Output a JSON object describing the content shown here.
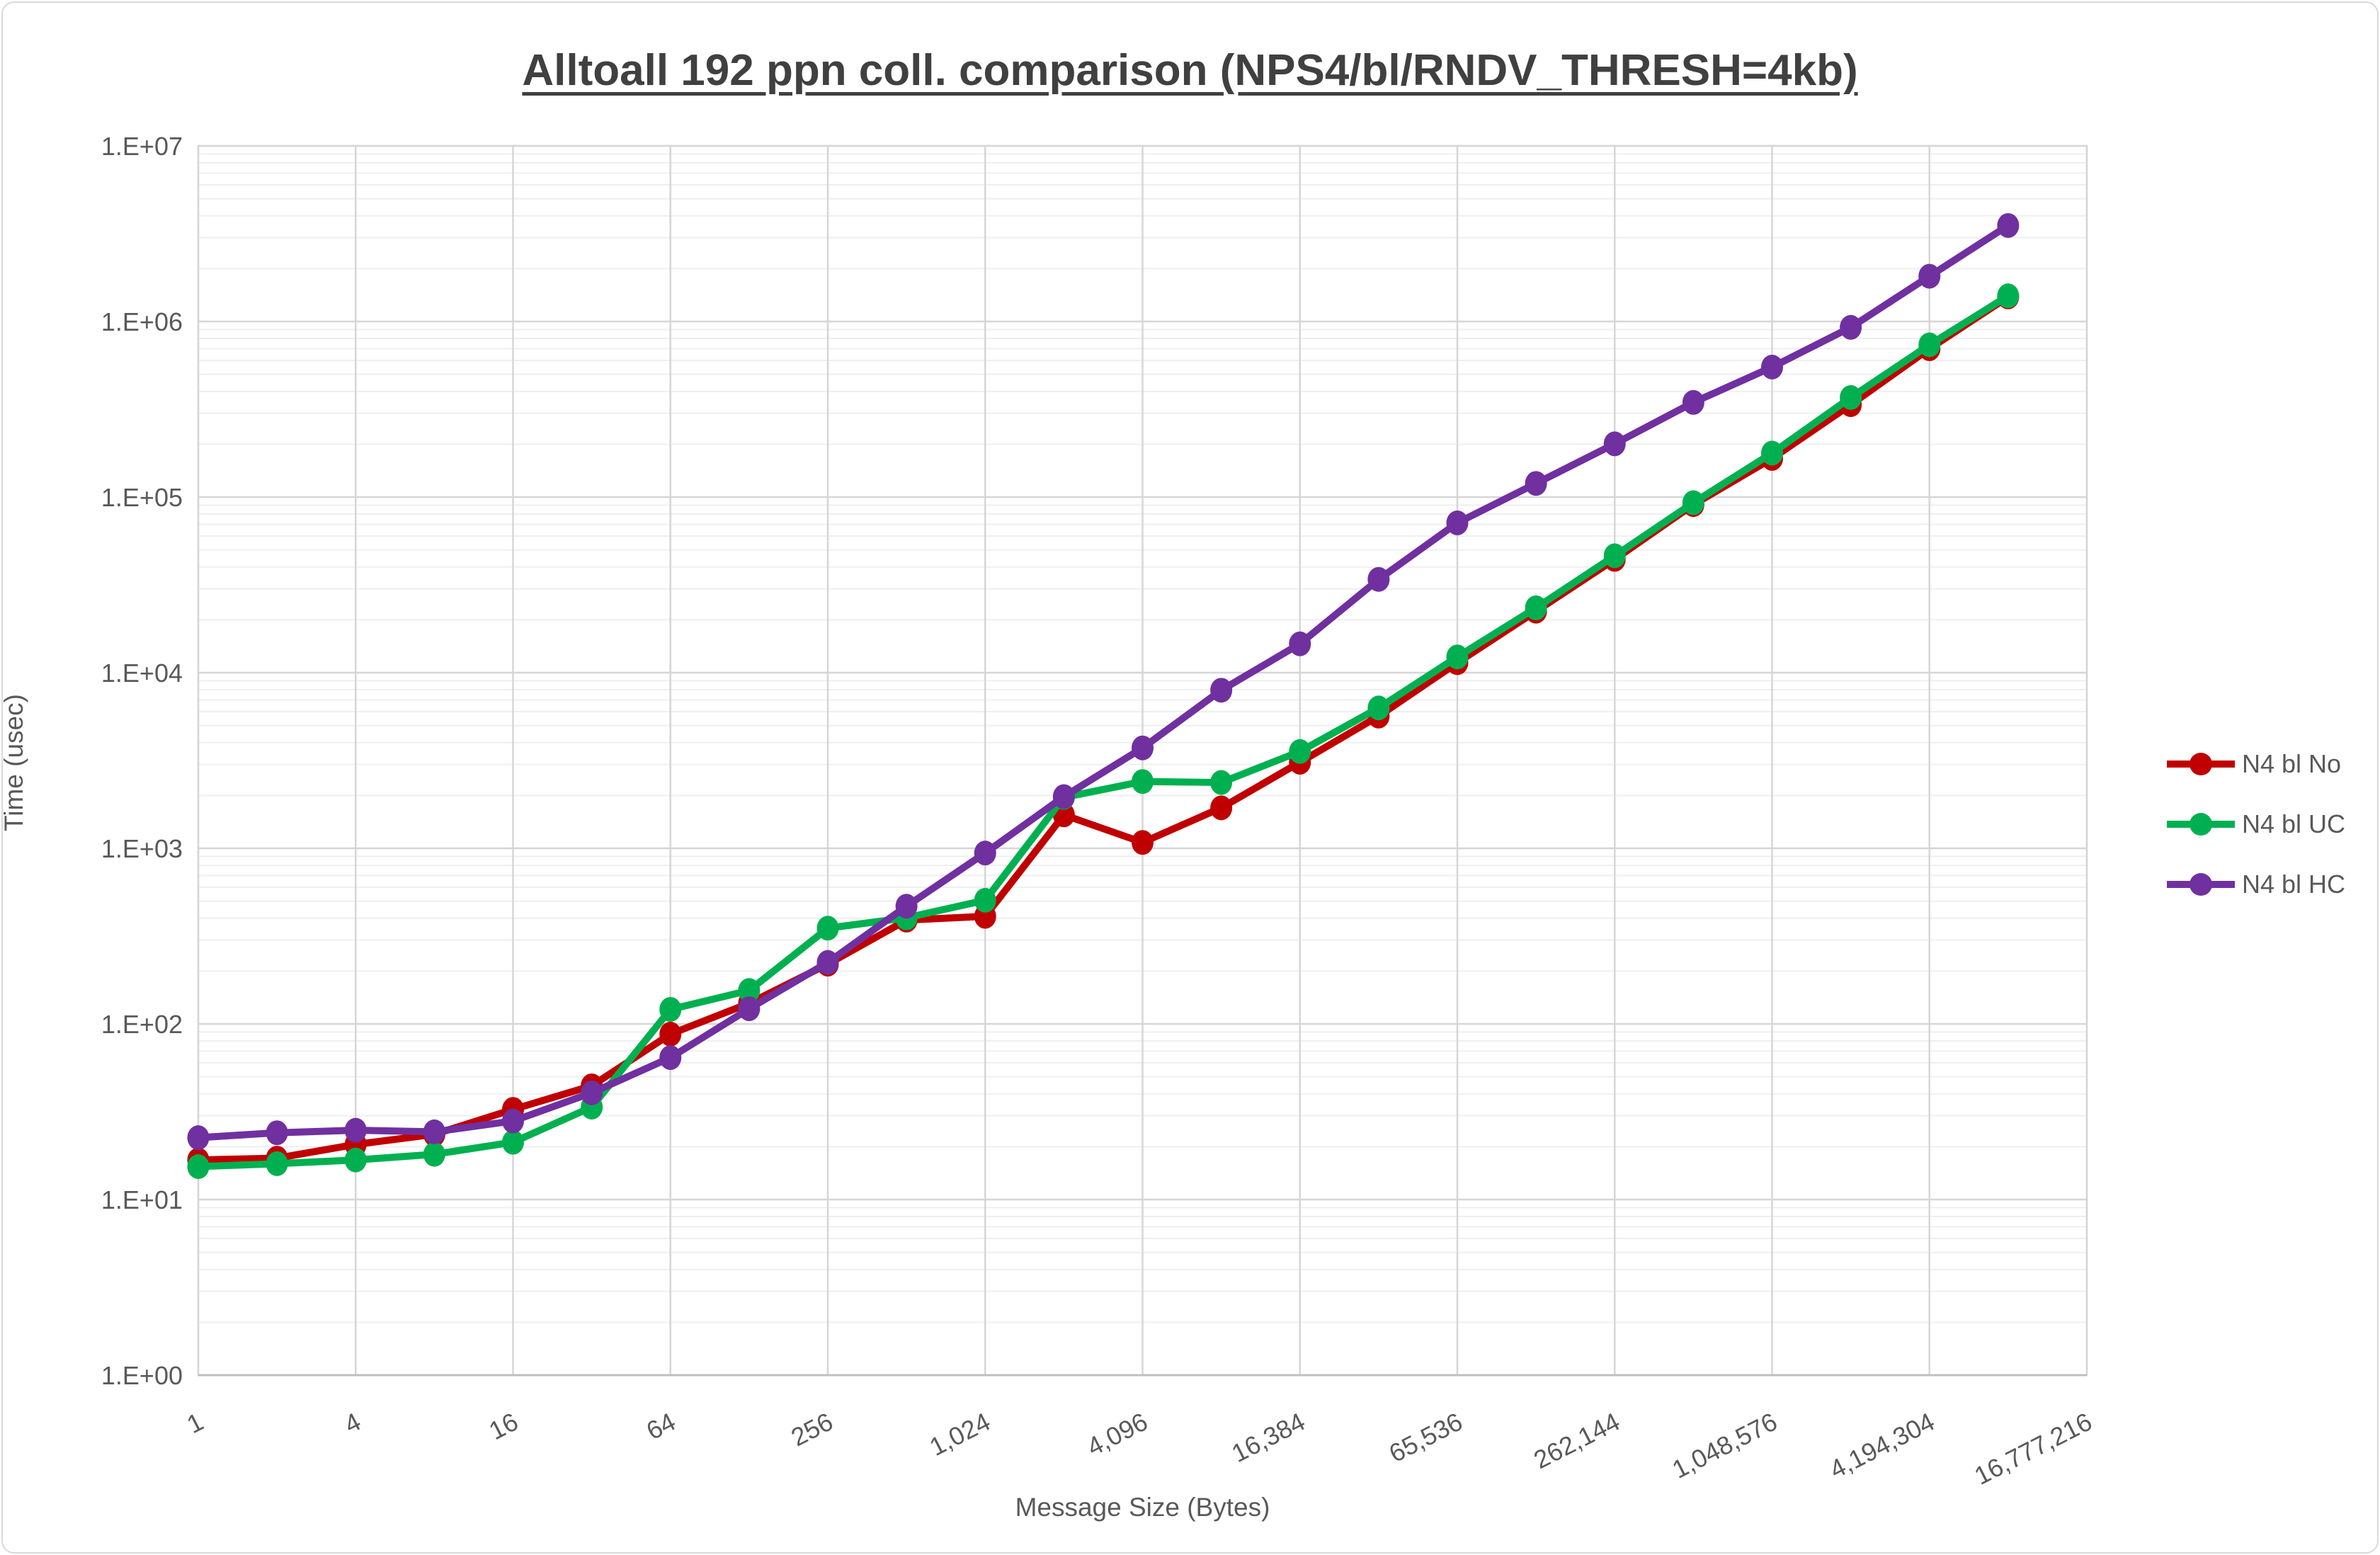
{
  "header": {
    "title": "Alltoall 192 ppn coll. comparison (NPS4/bl/RNDV_THRESH=4kb)"
  },
  "chart_data": {
    "type": "line",
    "title": "Alltoall 192 ppn coll. comparison (NPS4/bl/RNDV_THRESH=4kb)",
    "xlabel": "Message Size (Bytes)",
    "ylabel": "Time (usec)",
    "x_scale": "log2",
    "y_scale": "log10",
    "xlim": [
      1,
      16777216
    ],
    "ylim": [
      1,
      10000000
    ],
    "grid": {
      "major": true,
      "minor": true
    },
    "legend_position": "right",
    "x_tick_labels": [
      "1",
      "4",
      "16",
      "64",
      "256",
      "1,024",
      "4,096",
      "16,384",
      "65,536",
      "262,144",
      "1,048,576",
      "4,194,304",
      "16,777,216"
    ],
    "y_tick_labels": [
      "1.E+00",
      "1.E+01",
      "1.E+02",
      "1.E+03",
      "1.E+04",
      "1.E+05",
      "1.E+06",
      "1.E+07"
    ],
    "x": [
      1,
      2,
      4,
      8,
      16,
      32,
      64,
      128,
      256,
      512,
      1024,
      2048,
      4096,
      8192,
      16384,
      32768,
      65536,
      131072,
      262144,
      524288,
      1048576,
      2097152,
      4194304,
      8388608
    ],
    "series": [
      {
        "name": "N4 bl No",
        "color": "#C00000",
        "values": [
          16.8,
          17.2,
          20.6,
          23.5,
          32.6,
          44.4,
          87.5,
          131,
          219,
          390,
          410,
          1550,
          1080,
          1700,
          3090,
          5660,
          11400,
          22400,
          44200,
          90600,
          166000,
          336000,
          700000,
          1380000
        ]
      },
      {
        "name": "N4 bl UC",
        "color": "#00B050",
        "values": [
          15.4,
          16.0,
          16.8,
          18.1,
          21.2,
          33.6,
          121,
          155,
          351,
          402,
          506,
          1950,
          2400,
          2370,
          3560,
          6300,
          12300,
          23400,
          46300,
          92900,
          178000,
          369000,
          736000,
          1400000
        ]
      },
      {
        "name": "N4 bl HC",
        "color": "#7030A0",
        "values": [
          22.5,
          24.0,
          24.8,
          24.3,
          28.0,
          40.5,
          64.3,
          122,
          224,
          468,
          940,
          1970,
          3730,
          7950,
          14600,
          34000,
          71300,
          119600,
          201000,
          346000,
          550000,
          926000,
          1810000,
          3520000
        ]
      }
    ]
  },
  "colors": {
    "title_text": "#404040",
    "axis_text": "#595959",
    "grid_major": "#D6D6D6",
    "grid_minor": "#EFEFEF",
    "axis_line": "#BFBFBF",
    "background": "#FFFFFF"
  }
}
